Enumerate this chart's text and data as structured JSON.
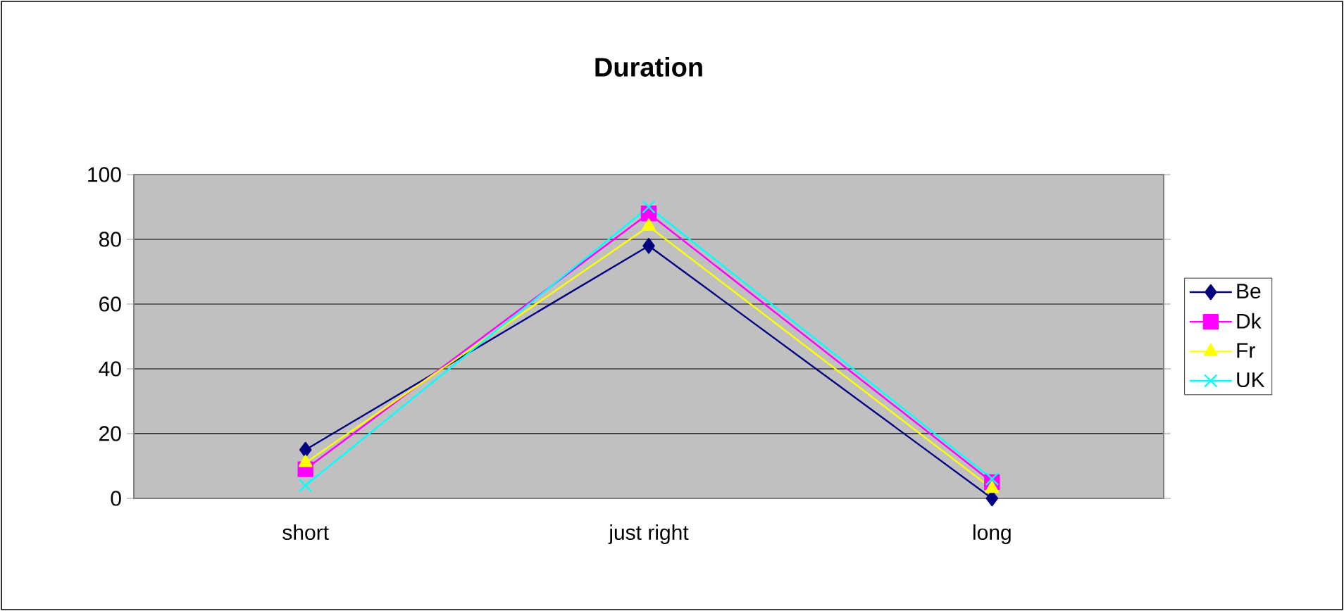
{
  "chart_data": {
    "type": "line",
    "title": "Duration",
    "categories": [
      "short",
      "just right",
      "long"
    ],
    "series": [
      {
        "name": "Be",
        "color": "#000080",
        "marker": "diamond",
        "values": [
          15,
          78,
          0
        ]
      },
      {
        "name": "Dk",
        "color": "#ff00ff",
        "marker": "square",
        "values": [
          9,
          88,
          5
        ]
      },
      {
        "name": "Fr",
        "color": "#ffff00",
        "marker": "triangle",
        "values": [
          11,
          84,
          3
        ]
      },
      {
        "name": "UK",
        "color": "#00ffff",
        "marker": "cross",
        "values": [
          4,
          90,
          6
        ]
      }
    ],
    "ylim": [
      0,
      100
    ],
    "yticks": [
      0,
      20,
      40,
      60,
      80,
      100
    ],
    "grid": "y",
    "legend": "right",
    "line_style": "solid"
  }
}
